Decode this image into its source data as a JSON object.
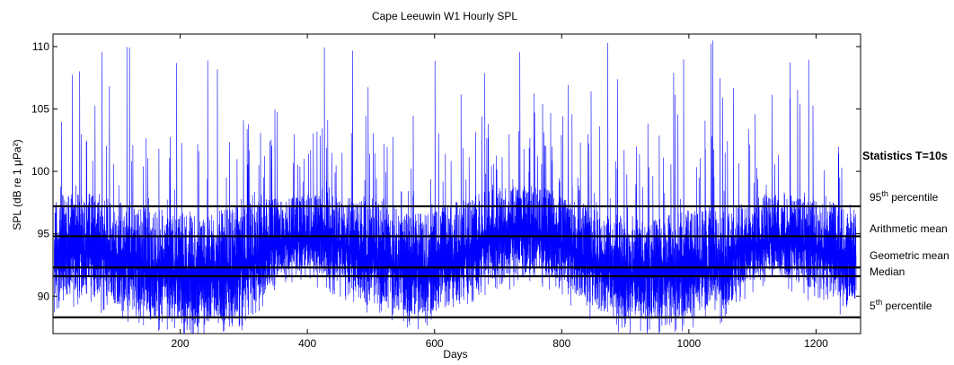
{
  "chart_data": {
    "type": "line",
    "title": "Cape Leeuwin W1 Hourly SPL",
    "xlabel": "Days",
    "ylabel": "SPL (dB re 1 μPa²)",
    "xlim": [
      0,
      1270
    ],
    "ylim": [
      87,
      111
    ],
    "xticks": [
      200,
      400,
      600,
      800,
      1000,
      1200
    ],
    "yticks": [
      90,
      95,
      100,
      105,
      110
    ],
    "grid": false,
    "line_color": "#0000ff",
    "envelope": {
      "description_x_days": [
        0,
        60,
        120,
        180,
        230,
        300,
        340,
        360,
        400,
        450,
        500,
        560,
        600,
        650,
        700,
        760,
        800,
        850,
        900,
        960,
        1000,
        1060,
        1080,
        1100,
        1150,
        1200,
        1240,
        1265
      ],
      "typical_low": [
        89.5,
        90.0,
        89.0,
        88.0,
        87.5,
        88.5,
        90.5,
        92.0,
        92.0,
        91.0,
        89.5,
        88.5,
        88.5,
        90.0,
        91.5,
        92.0,
        91.0,
        89.0,
        88.0,
        88.0,
        88.5,
        89.0,
        90.5,
        91.5,
        91.5,
        90.5,
        89.5,
        89.5
      ],
      "typical_high": [
        97.5,
        98.0,
        97.0,
        96.5,
        96.0,
        97.0,
        97.5,
        97.5,
        98.0,
        98.0,
        97.5,
        96.5,
        96.5,
        97.5,
        98.5,
        98.5,
        98.0,
        97.0,
        96.0,
        96.0,
        96.5,
        96.5,
        97.0,
        97.5,
        98.0,
        97.5,
        97.0,
        97.0
      ],
      "peak_max": 110.5
    },
    "statistics": {
      "title": "Statistics T=10s",
      "lines": [
        {
          "label_main": "95",
          "label_sup": "th",
          "label_rest": " percentile",
          "value": 97.2
        },
        {
          "label_main": "Arithmetic mean",
          "label_sup": "",
          "label_rest": "",
          "value": 94.8
        },
        {
          "label_main": "Geometric mean",
          "label_sup": "",
          "label_rest": "",
          "value": 92.3
        },
        {
          "label_main": "Median",
          "label_sup": "",
          "label_rest": "",
          "value": 91.6
        },
        {
          "label_main": "5",
          "label_sup": "th",
          "label_rest": " percentile",
          "value": 88.3
        }
      ]
    }
  }
}
